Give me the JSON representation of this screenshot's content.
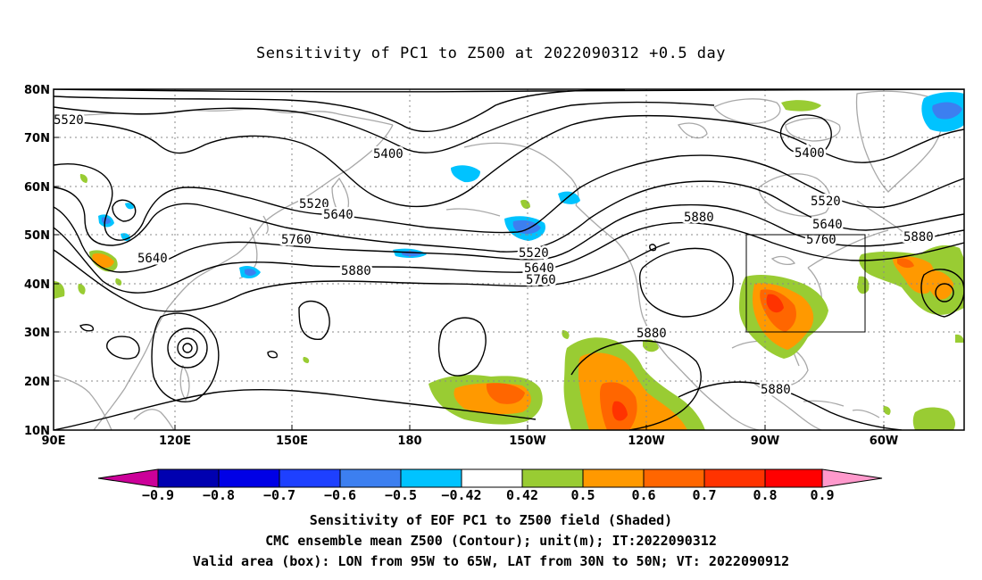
{
  "title": "Sensitivity of PC1 to Z500 at 2022090312 +0.5 day",
  "map": {
    "lon_range": [
      "90E",
      "60W (approx 305E)"
    ],
    "lat_range": [
      10,
      80
    ],
    "lat_ticks": [
      "10N",
      "20N",
      "30N",
      "40N",
      "50N",
      "60N",
      "70N",
      "80N"
    ],
    "lon_ticks": [
      "90E",
      "120E",
      "150E",
      "180",
      "150W",
      "120W",
      "90W",
      "60W"
    ],
    "valid_box": {
      "lon": [
        -95,
        -65
      ],
      "lat": [
        30,
        50
      ]
    },
    "contour_labels": [
      "5520",
      "5400",
      "5520",
      "5640",
      "5760",
      "5880",
      "5640",
      "5520",
      "5640",
      "5760",
      "5880",
      "5400",
      "5520",
      "5640",
      "5760",
      "5880",
      "5880",
      "5880"
    ]
  },
  "colorbar": {
    "labels": [
      "-0.9",
      "-0.8",
      "-0.7",
      "-0.6",
      "-0.5",
      "-0.42",
      "0.42",
      "0.5",
      "0.6",
      "0.7",
      "0.8",
      "0.9"
    ],
    "colors": [
      "#cc0099",
      "#0000b0",
      "#0000e6",
      "#1e40ff",
      "#3c7ff0",
      "#00c3ff",
      "#ffffff",
      "#99cc33",
      "#ff9900",
      "#ff6600",
      "#ff3300",
      "#ff0000",
      "#ff99cc"
    ]
  },
  "captions": {
    "line1": "Sensitivity of EOF PC1 to Z500 field (Shaded)",
    "line2": "CMC ensemble mean Z500 (Contour); unit(m); IT:2022090312",
    "line3": "Valid area (box): LON from 95W to 65W, LAT from 30N to 50N; VT: 2022090912"
  }
}
